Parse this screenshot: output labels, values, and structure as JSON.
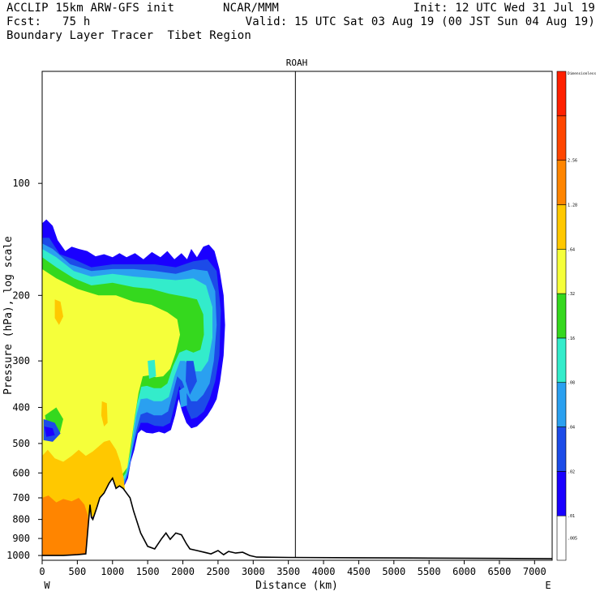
{
  "header": {
    "line1_left": "ACCLIP 15km ARW-GFS init",
    "line1_center": "NCAR/MMM",
    "line1_right": "Init: 12 UTC Wed 31 Jul 19",
    "line2_left": "Fcst:   75 h",
    "line2_right": "Valid: 15 UTC Sat 03 Aug 19 (00 JST Sun 04 Aug 19)",
    "line3_left": "Boundary Layer Tracer  Tibet Region"
  },
  "chart_data": {
    "type": "contour-cross-section",
    "title": "ROAH",
    "xlabel": "Distance (km)",
    "ylabel": "Pressure (hPa), log scale",
    "x_range": [
      0,
      7250
    ],
    "y_range": [
      1030,
      50
    ],
    "y_scale": "log",
    "x_ticks": [
      0,
      500,
      1000,
      1500,
      2000,
      2500,
      3000,
      3500,
      4000,
      4500,
      5000,
      5500,
      6000,
      6500,
      7000
    ],
    "x_tick_labels": [
      "0",
      "500",
      "1000",
      "1500",
      "2000",
      "2500",
      "3000",
      "3500",
      "4000",
      "4500",
      "5000",
      "5500",
      "6000",
      "6500",
      "7000"
    ],
    "y_ticks": [
      100,
      200,
      300,
      400,
      500,
      600,
      700,
      800,
      900,
      1000
    ],
    "y_tick_labels": [
      "100",
      "200",
      "300",
      "400",
      "500",
      "600",
      "700",
      "800",
      "900",
      "1000"
    ],
    "left_end_label": "W",
    "right_end_label": "E",
    "marker_line_km": 3600,
    "colorbar": {
      "top_label": "Dimensionless",
      "levels": [
        ".005",
        ".01",
        ".02",
        ".04",
        ".08",
        ".16",
        ".32",
        ".64",
        "1.28",
        "2.56"
      ],
      "colors": [
        "#ffffff",
        "#1a00ff",
        "#1c4be8",
        "#2aa0f0",
        "#33eccb",
        "#35d81e",
        "#f5ff3a",
        "#ffc800",
        "#ff8500",
        "#ff4500",
        "#ff2000"
      ]
    },
    "tracer_filled_regions": [
      {
        "level": "0.01-0.02",
        "color": "#1a00ff",
        "x_km": [
          0,
          2600
        ],
        "p_hpa": [
          135,
          1000
        ]
      },
      {
        "level": "0.08-0.16",
        "color": "#33eccb",
        "x_km": [
          0,
          2550
        ],
        "p_hpa": [
          150,
          760
        ]
      },
      {
        "level": "0.16-0.32",
        "color": "#35d81e",
        "x_km": [
          0,
          2450
        ],
        "p_hpa": [
          160,
          700
        ]
      },
      {
        "level": "0.32-0.64",
        "color": "#f5ff3a",
        "x_km": [
          0,
          1900
        ],
        "p_hpa": [
          175,
          680
        ]
      },
      {
        "level": "0.64-1.28",
        "color": "#ffc800",
        "x_km": [
          0,
          1200
        ],
        "p_hpa": [
          480,
          1000
        ]
      },
      {
        "level": "1.28-2.56",
        "color": "#ff8500",
        "x_km": [
          0,
          650
        ],
        "p_hpa": [
          700,
          1000
        ]
      }
    ],
    "terrain_km": [
      0,
      100,
      300,
      500,
      620,
      650,
      680,
      700,
      720,
      780,
      820,
      880,
      950,
      1000,
      1050,
      1100,
      1150,
      1250,
      1300,
      1400,
      1500,
      1600,
      1700,
      1760,
      1820,
      1900,
      1980,
      2050,
      2100,
      2200,
      2400,
      2500,
      2580,
      2650,
      2750,
      2850,
      2950,
      3050,
      3500,
      4500,
      5500,
      6500,
      7250
    ],
    "terrain_p_hpa": [
      1000,
      1000,
      1000,
      995,
      990,
      850,
      730,
      790,
      800,
      740,
      700,
      680,
      640,
      620,
      660,
      650,
      660,
      700,
      760,
      870,
      945,
      960,
      900,
      870,
      905,
      870,
      880,
      930,
      960,
      970,
      990,
      970,
      995,
      975,
      985,
      980,
      1000,
      1010,
      1012,
      1014,
      1016,
      1018,
      1020
    ]
  }
}
